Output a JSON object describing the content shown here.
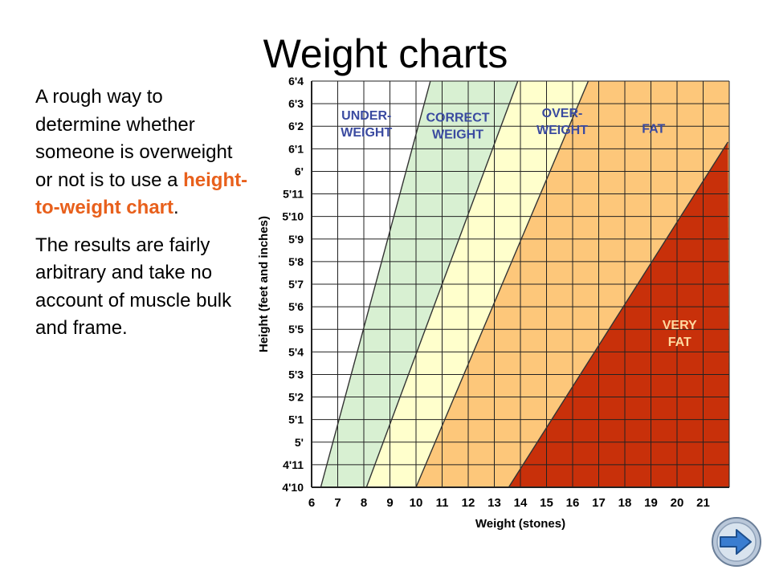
{
  "slide": {
    "title": "Weight charts",
    "paragraph1": {
      "before": "A rough way to determine whether someone is overweight  or not is to use a ",
      "highlight": "height-to-weight chart",
      "after": "."
    },
    "paragraph2": "The results are fairly arbitrary and take no account of muscle bulk and frame."
  },
  "chart_data": {
    "type": "area",
    "xlabel": "Weight (stones)",
    "ylabel": "Height (feet and inches)",
    "x_ticks": [
      "6",
      "7",
      "8",
      "9",
      "10",
      "11",
      "12",
      "13",
      "14",
      "15",
      "16",
      "17",
      "18",
      "19",
      "20",
      "21"
    ],
    "y_ticks": [
      "4'10",
      "4'11",
      "5'",
      "5'1",
      "5'2",
      "5'3",
      "5'4",
      "5'5",
      "5'6",
      "5'7",
      "5'8",
      "5'9",
      "5'10",
      "5'11",
      "6'",
      "6'1",
      "6'2",
      "6'3",
      "6'4"
    ],
    "xlim": [
      6,
      22
    ],
    "ylim": [
      58,
      76
    ],
    "height_unit": "inches",
    "zones": [
      {
        "name": "UNDER-WEIGHT",
        "label_lines": [
          "UNDER-",
          "WEIGHT"
        ],
        "color": "#ffffff",
        "label_at": [
          8.1,
          74.3
        ]
      },
      {
        "name": "CORRECT WEIGHT",
        "label_lines": [
          "CORRECT",
          "WEIGHT"
        ],
        "color": "#d8f0d2",
        "label_at": [
          11.6,
          74.2
        ]
      },
      {
        "name": "OVER-WEIGHT",
        "label_lines": [
          "OVER-",
          "WEIGHT"
        ],
        "color": "#ffffcc",
        "label_at": [
          15.6,
          74.4
        ]
      },
      {
        "name": "FAT",
        "label_lines": [
          "FAT"
        ],
        "color": "#fdc77a",
        "label_at": [
          19.1,
          73.7
        ]
      },
      {
        "name": "VERY FAT",
        "label_lines": [
          "VERY",
          "FAT"
        ],
        "color": "#c8300a",
        "label_at": [
          20.1,
          65.0
        ]
      }
    ],
    "boundaries": [
      {
        "between": [
          "UNDER-WEIGHT",
          "CORRECT WEIGHT"
        ],
        "from": [
          6.35,
          58
        ],
        "to": [
          10.55,
          76
        ]
      },
      {
        "between": [
          "CORRECT WEIGHT",
          "OVER-WEIGHT"
        ],
        "from": [
          8.1,
          58
        ],
        "to": [
          13.9,
          76
        ]
      },
      {
        "between": [
          "OVER-WEIGHT",
          "FAT"
        ],
        "from": [
          10.0,
          58
        ],
        "to": [
          16.6,
          76
        ]
      },
      {
        "between": [
          "FAT",
          "VERY FAT"
        ],
        "from": [
          13.55,
          58
        ],
        "to": [
          21.95,
          73.3
        ]
      }
    ],
    "label_colors": {
      "dark_text": "#3a4aa0",
      "light_text": "#ffd9a0"
    },
    "grid": true
  },
  "nav": {
    "next_icon": "arrow-right-icon",
    "accent": "#2f6fbf"
  }
}
